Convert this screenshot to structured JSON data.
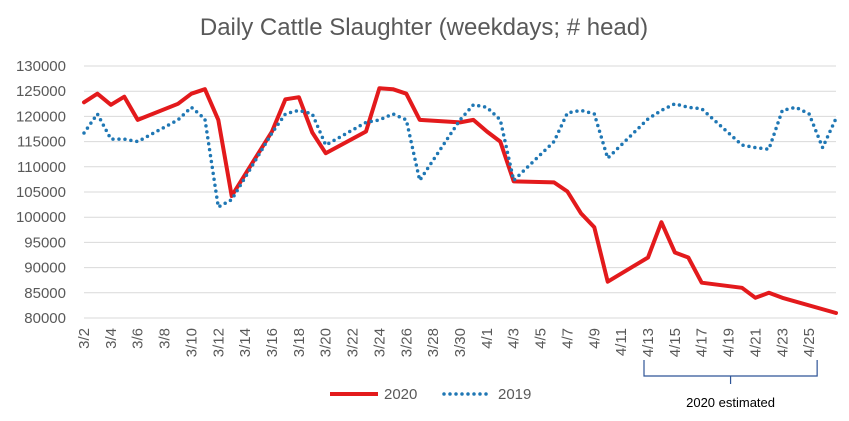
{
  "chart_data": {
    "type": "line",
    "title": "Daily Cattle Slaughter (weekdays; # head)",
    "xlabel": "",
    "ylabel": "",
    "ylim": [
      80000,
      130000
    ],
    "y_ticks": [
      "130000",
      "125000",
      "120000",
      "115000",
      "110000",
      "105000",
      "100000",
      "95000",
      "90000",
      "85000",
      "80000"
    ],
    "x_ticks": [
      "3/2",
      "3/4",
      "3/6",
      "3/8",
      "3/10",
      "3/12",
      "3/14",
      "3/16",
      "3/18",
      "3/20",
      "3/22",
      "3/24",
      "3/26",
      "3/28",
      "3/30",
      "4/1",
      "4/3",
      "4/5",
      "4/7",
      "4/9",
      "4/11",
      "4/13",
      "4/15",
      "4/17",
      "4/19",
      "4/21",
      "4/23",
      "4/25"
    ],
    "grid": true,
    "legend_position": "bottom",
    "series": [
      {
        "name": "2020",
        "style": "solid",
        "color": "#e31a1c",
        "points": [
          [
            "3/2",
            122800
          ],
          [
            "3/3",
            124500
          ],
          [
            "3/4",
            122300
          ],
          [
            "3/5",
            123900
          ],
          [
            "3/6",
            119300
          ],
          [
            "3/9",
            122500
          ],
          [
            "3/10",
            124500
          ],
          [
            "3/11",
            125400
          ],
          [
            "3/12",
            119300
          ],
          [
            "3/13",
            104200
          ],
          [
            "3/16",
            117000
          ],
          [
            "3/17",
            123400
          ],
          [
            "3/18",
            123800
          ],
          [
            "3/19",
            116800
          ],
          [
            "3/20",
            112700
          ],
          [
            "3/23",
            117000
          ],
          [
            "3/24",
            125600
          ],
          [
            "3/25",
            125400
          ],
          [
            "3/26",
            124500
          ],
          [
            "3/27",
            119300
          ],
          [
            "3/30",
            118800
          ],
          [
            "3/31",
            119300
          ],
          [
            "4/1",
            117000
          ],
          [
            "4/2",
            115000
          ],
          [
            "4/3",
            107100
          ],
          [
            "4/6",
            106900
          ],
          [
            "4/7",
            105100
          ],
          [
            "4/8",
            100800
          ],
          [
            "4/9",
            98000
          ],
          [
            "4/10",
            87200
          ],
          [
            "4/13",
            92000
          ],
          [
            "4/14",
            99000
          ],
          [
            "4/15",
            93000
          ],
          [
            "4/16",
            92000
          ],
          [
            "4/17",
            87000
          ],
          [
            "4/20",
            86000
          ],
          [
            "4/21",
            84000
          ],
          [
            "4/22",
            85000
          ],
          [
            "4/23",
            84000
          ],
          [
            "4/27",
            81000
          ]
        ]
      },
      {
        "name": "2019",
        "style": "dotted",
        "color": "#1f77b4",
        "points": [
          [
            "3/2",
            116700
          ],
          [
            "3/3",
            120500
          ],
          [
            "3/4",
            115500
          ],
          [
            "3/5",
            115500
          ],
          [
            "3/6",
            115000
          ],
          [
            "3/9",
            119300
          ],
          [
            "3/10",
            121800
          ],
          [
            "3/11",
            119500
          ],
          [
            "3/12",
            102000
          ],
          [
            "3/13",
            103500
          ],
          [
            "3/16",
            116700
          ],
          [
            "3/17",
            120500
          ],
          [
            "3/18",
            121200
          ],
          [
            "3/19",
            120500
          ],
          [
            "3/20",
            114300
          ],
          [
            "3/23",
            118800
          ],
          [
            "3/24",
            119300
          ],
          [
            "3/25",
            120500
          ],
          [
            "3/26",
            119300
          ],
          [
            "3/27",
            107300
          ],
          [
            "3/30",
            119300
          ],
          [
            "3/31",
            122300
          ],
          [
            "4/1",
            121800
          ],
          [
            "4/2",
            119300
          ],
          [
            "4/3",
            107300
          ],
          [
            "4/6",
            115000
          ],
          [
            "4/7",
            120700
          ],
          [
            "4/8",
            121200
          ],
          [
            "4/9",
            120500
          ],
          [
            "4/10",
            111700
          ],
          [
            "4/13",
            119500
          ],
          [
            "4/14",
            121200
          ],
          [
            "4/15",
            122500
          ],
          [
            "4/16",
            121800
          ],
          [
            "4/17",
            121500
          ],
          [
            "4/20",
            114300
          ],
          [
            "4/21",
            113800
          ],
          [
            "4/22",
            113500
          ],
          [
            "4/23",
            121200
          ],
          [
            "4/24",
            121800
          ],
          [
            "4/25",
            120500
          ],
          [
            "4/26",
            113800
          ],
          [
            "4/27",
            119600
          ]
        ]
      }
    ],
    "annotation": {
      "text": "2020 estimated",
      "from_tick": "4/13",
      "to_tick": "4/25"
    }
  },
  "colors": {
    "background": "#ffffff",
    "grid": "#d9d9d9",
    "text": "#595959",
    "series_2020": "#e31a1c",
    "series_2019": "#1f77b4",
    "annotation": "#2f5597"
  }
}
